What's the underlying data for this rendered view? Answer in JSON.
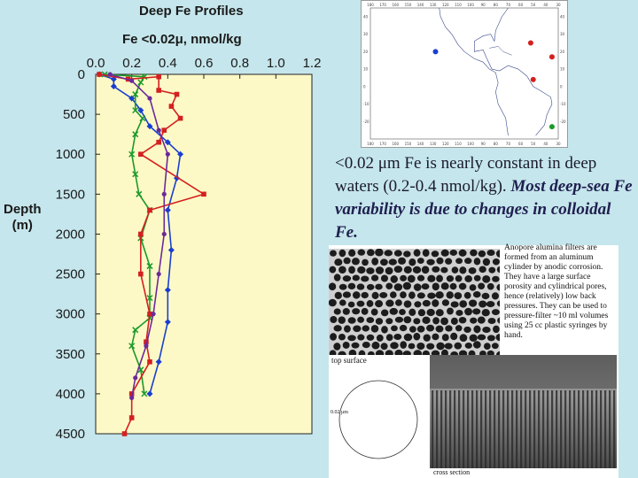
{
  "slide": {
    "title": "Deep Fe Profiles",
    "subtitle": "Fe  <0.02μ,  nmol/kg",
    "ylabel_line1": "Depth",
    "ylabel_line2": "(m)",
    "caption_plain": "<0.02 μm Fe is nearly constant in deep waters (0.2-0.4 nmol/kg). ",
    "caption_emphasis": "Most deep-sea Fe variability is due to changes in colloidal Fe."
  },
  "map": {
    "top_labels": [
      "180",
      "170",
      "160",
      "150",
      "140",
      "130",
      "120",
      "110",
      "100",
      "90",
      "80",
      "70",
      "60",
      "50",
      "40",
      "30"
    ],
    "lat_labels": [
      "40",
      "30",
      "20",
      "10",
      "0",
      "-10",
      "-20"
    ],
    "stations": [
      {
        "lon": -128,
        "lat": 20,
        "color": "#1a3fd0"
      },
      {
        "lon": -52,
        "lat": 25,
        "color": "#d42020"
      },
      {
        "lon": -35,
        "lat": 17,
        "color": "#d42020"
      },
      {
        "lon": -50,
        "lat": 4,
        "color": "#d42020"
      },
      {
        "lon": -35,
        "lat": -23,
        "color": "#1a9a2a"
      }
    ]
  },
  "micro": {
    "description": "Anopore alumina filters are formed from an aluminum cylinder by anodic corrosion. They have a large surface porosity and cylindrical pores, hence (relatively) low back pressures. They can be used to pressure-filter ~10 ml volumes using 25 cc plastic syringes by hand.",
    "top_label": "top surface",
    "circle_label": "0.02 μm",
    "cross_label": "cross section"
  },
  "chart_data": {
    "type": "line",
    "title": "Deep Fe Profiles",
    "xlabel": "Fe  <0.02μ,  nmol/kg",
    "ylabel": "Depth (m)",
    "xlim": [
      0,
      1.2
    ],
    "ylim": [
      4500,
      0
    ],
    "xticks": [
      "0.0",
      "0.2",
      "0.4",
      "0.6",
      "0.8",
      "1.0",
      "1.2"
    ],
    "yticks": [
      "0",
      "500",
      "1000",
      "1500",
      "2000",
      "2500",
      "3000",
      "3500",
      "4000",
      "4500"
    ],
    "series": [
      {
        "color": "#1a3fd0",
        "marker": "diamond",
        "points": [
          [
            0.02,
            0
          ],
          [
            0.1,
            60
          ],
          [
            0.1,
            150
          ],
          [
            0.2,
            300
          ],
          [
            0.25,
            450
          ],
          [
            0.3,
            650
          ],
          [
            0.4,
            850
          ],
          [
            0.47,
            1000
          ],
          [
            0.45,
            1300
          ],
          [
            0.4,
            1700
          ],
          [
            0.42,
            2200
          ],
          [
            0.4,
            2700
          ],
          [
            0.4,
            3100
          ],
          [
            0.35,
            3600
          ],
          [
            0.3,
            4000
          ]
        ]
      },
      {
        "color": "#1a9a2a",
        "marker": "x",
        "points": [
          [
            0.05,
            0
          ],
          [
            0.27,
            30
          ],
          [
            0.25,
            100
          ],
          [
            0.22,
            250
          ],
          [
            0.22,
            450
          ],
          [
            0.26,
            550
          ],
          [
            0.22,
            750
          ],
          [
            0.2,
            1000
          ],
          [
            0.22,
            1250
          ],
          [
            0.24,
            1500
          ],
          [
            0.3,
            1700
          ],
          [
            0.25,
            2050
          ],
          [
            0.3,
            2400
          ],
          [
            0.3,
            2800
          ],
          [
            0.3,
            3050
          ],
          [
            0.22,
            3200
          ],
          [
            0.2,
            3400
          ],
          [
            0.25,
            3700
          ],
          [
            0.27,
            4000
          ]
        ]
      },
      {
        "color": "#d42020",
        "marker": "square",
        "points": [
          [
            0.02,
            0
          ],
          [
            0.18,
            60
          ],
          [
            0.35,
            30
          ],
          [
            0.35,
            200
          ],
          [
            0.45,
            250
          ],
          [
            0.42,
            400
          ],
          [
            0.47,
            550
          ],
          [
            0.38,
            700
          ],
          [
            0.35,
            850
          ],
          [
            0.25,
            1000
          ],
          [
            0.6,
            1500
          ],
          [
            0.3,
            1700
          ],
          [
            0.25,
            2000
          ],
          [
            0.25,
            2500
          ],
          [
            0.3,
            3000
          ],
          [
            0.28,
            3350
          ],
          [
            0.3,
            3600
          ],
          [
            0.2,
            4000
          ],
          [
            0.2,
            4300
          ],
          [
            0.16,
            4500
          ]
        ]
      },
      {
        "color": "#6a2a9a",
        "marker": "circle",
        "points": [
          [
            0.08,
            0
          ],
          [
            0.2,
            80
          ],
          [
            0.3,
            300
          ],
          [
            0.35,
            700
          ],
          [
            0.4,
            1000
          ],
          [
            0.38,
            1500
          ],
          [
            0.38,
            2000
          ],
          [
            0.35,
            2500
          ],
          [
            0.32,
            3000
          ],
          [
            0.28,
            3400
          ],
          [
            0.22,
            3800
          ],
          [
            0.2,
            4050
          ]
        ]
      }
    ]
  }
}
